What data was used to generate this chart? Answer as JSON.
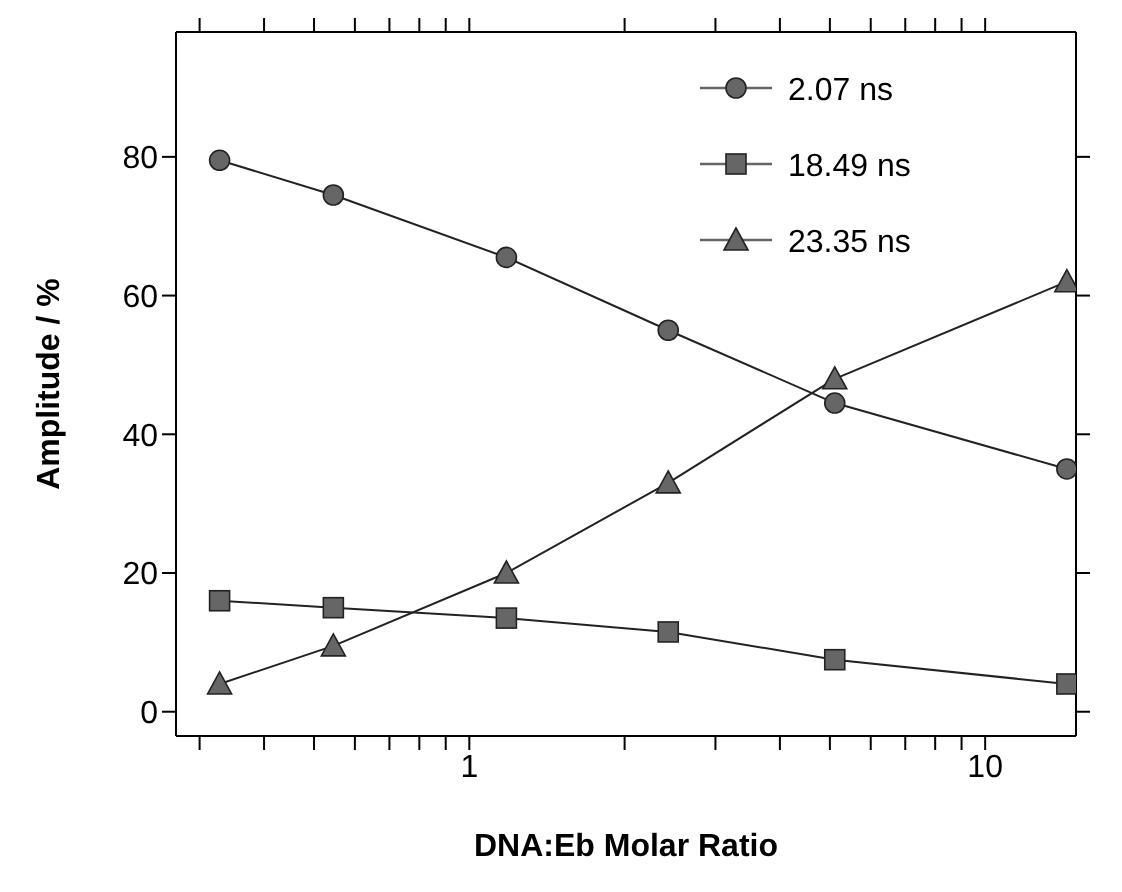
{
  "chart_data": {
    "type": "line",
    "xlabel": "DNA:Eb Molar Ratio",
    "ylabel": "Amplitude / %",
    "x": [
      0.328,
      0.545,
      1.18,
      2.43,
      5.11,
      14.4
    ],
    "series": [
      {
        "name": "2.07 ns",
        "color": "#666666",
        "marker": "circle",
        "values": [
          79.5,
          74.5,
          65.5,
          55,
          44.5,
          35
        ]
      },
      {
        "name": "18.49 ns",
        "color": "#666666",
        "marker": "square",
        "values": [
          16,
          15,
          13.5,
          11.5,
          7.5,
          4
        ]
      },
      {
        "name": "23.35 ns",
        "color": "#666666",
        "marker": "triangle",
        "values": [
          4,
          9.5,
          20,
          33,
          48,
          62
        ]
      }
    ],
    "log": "x",
    "xlim": [
      0.27,
      15
    ],
    "ylim": [
      -3.5,
      98
    ],
    "xticks": [
      {
        "value": 0.3,
        "label": null
      },
      {
        "value": 0.4,
        "label": null
      },
      {
        "value": 0.5,
        "label": null
      },
      {
        "value": 0.6,
        "label": null
      },
      {
        "value": 0.7,
        "label": null
      },
      {
        "value": 0.8,
        "label": null
      },
      {
        "value": 0.9,
        "label": null
      },
      1,
      {
        "value": 2,
        "label": null
      },
      {
        "value": 3,
        "label": null
      },
      {
        "value": 4,
        "label": null
      },
      {
        "value": 5,
        "label": null
      },
      {
        "value": 6,
        "label": null
      },
      {
        "value": 7,
        "label": null
      },
      {
        "value": 8,
        "label": null
      },
      {
        "value": 9,
        "label": null
      },
      10
    ],
    "yticks": [
      0,
      20,
      40,
      60,
      80
    ],
    "grid": false,
    "legend": "top right",
    "line_style": "solid"
  }
}
